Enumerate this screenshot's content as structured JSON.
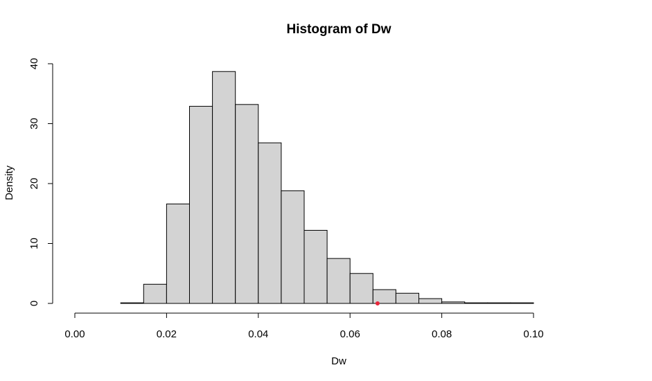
{
  "chart_data": {
    "type": "histogram",
    "title": "Histogram of Dw",
    "xlabel": "Dw",
    "ylabel": "Density",
    "xlim": [
      0.0,
      0.1
    ],
    "ylim": [
      0,
      40
    ],
    "x_ticks": [
      "0.00",
      "0.02",
      "0.04",
      "0.06",
      "0.08",
      "0.10"
    ],
    "y_ticks": [
      "0",
      "10",
      "20",
      "30",
      "40"
    ],
    "bin_width": 0.005,
    "bins": [
      {
        "x0": 0.01,
        "x1": 0.015,
        "density": 0.1
      },
      {
        "x0": 0.015,
        "x1": 0.02,
        "density": 3.2
      },
      {
        "x0": 0.02,
        "x1": 0.025,
        "density": 16.6
      },
      {
        "x0": 0.025,
        "x1": 0.03,
        "density": 32.9
      },
      {
        "x0": 0.03,
        "x1": 0.035,
        "density": 38.7
      },
      {
        "x0": 0.035,
        "x1": 0.04,
        "density": 33.2
      },
      {
        "x0": 0.04,
        "x1": 0.045,
        "density": 26.8
      },
      {
        "x0": 0.045,
        "x1": 0.05,
        "density": 18.8
      },
      {
        "x0": 0.05,
        "x1": 0.055,
        "density": 12.2
      },
      {
        "x0": 0.055,
        "x1": 0.06,
        "density": 7.5
      },
      {
        "x0": 0.06,
        "x1": 0.065,
        "density": 5.0
      },
      {
        "x0": 0.065,
        "x1": 0.07,
        "density": 2.3
      },
      {
        "x0": 0.07,
        "x1": 0.075,
        "density": 1.7
      },
      {
        "x0": 0.075,
        "x1": 0.08,
        "density": 0.8
      },
      {
        "x0": 0.08,
        "x1": 0.085,
        "density": 0.25
      },
      {
        "x0": 0.085,
        "x1": 0.09,
        "density": 0.1
      },
      {
        "x0": 0.09,
        "x1": 0.095,
        "density": 0.1
      },
      {
        "x0": 0.095,
        "x1": 0.1,
        "density": 0.1
      }
    ],
    "marker": {
      "x": 0.066,
      "y": 0,
      "color": "#e8263a"
    },
    "bar_fill": "#d3d3d3",
    "bar_stroke": "#000000",
    "grid": false
  }
}
